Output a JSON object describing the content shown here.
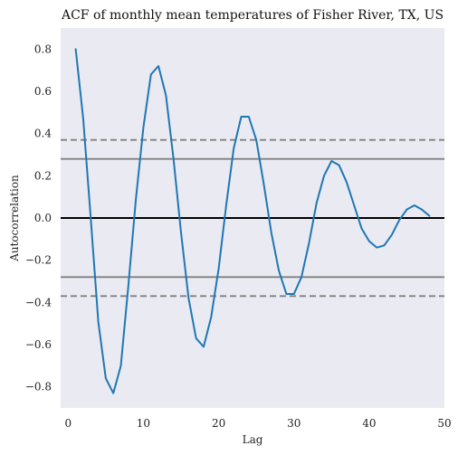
{
  "chart_data": {
    "type": "line",
    "title": "ACF of monthly mean temperatures of Fisher River, TX, US",
    "xlabel": "Lag",
    "ylabel": "Autocorrelation",
    "xlim": [
      -1,
      50
    ],
    "ylim": [
      -0.9,
      0.9
    ],
    "xticks": [
      0,
      10,
      20,
      30,
      40,
      50
    ],
    "xtick_labels": [
      "0",
      "10",
      "20",
      "30",
      "40",
      "50"
    ],
    "yticks": [
      -0.8,
      -0.6,
      -0.4,
      -0.2,
      0.0,
      0.2,
      0.4,
      0.6,
      0.8
    ],
    "ytick_labels": [
      "−0.8",
      "−0.6",
      "−0.4",
      "−0.2",
      "0.0",
      "0.2",
      "0.4",
      "0.6",
      "0.8"
    ],
    "grid": false,
    "background": "#eaeaf2",
    "series": [
      {
        "color": "#1f77b4",
        "x": [
          1,
          2,
          3,
          4,
          5,
          6,
          7,
          8,
          9,
          10,
          11,
          12,
          13,
          14,
          15,
          16,
          17,
          18,
          19,
          20,
          21,
          22,
          23,
          24,
          25,
          26,
          27,
          28,
          29,
          30,
          31,
          32,
          33,
          34,
          35,
          36,
          37,
          38,
          39,
          40,
          41,
          42,
          43,
          44,
          45,
          46,
          47,
          48
        ],
        "y": [
          0.8,
          0.47,
          0.0,
          -0.49,
          -0.76,
          -0.83,
          -0.7,
          -0.32,
          0.09,
          0.43,
          0.68,
          0.72,
          0.58,
          0.28,
          -0.07,
          -0.38,
          -0.57,
          -0.61,
          -0.47,
          -0.24,
          0.06,
          0.33,
          0.48,
          0.48,
          0.37,
          0.16,
          -0.07,
          -0.25,
          -0.36,
          -0.36,
          -0.28,
          -0.12,
          0.07,
          0.2,
          0.27,
          0.25,
          0.17,
          0.06,
          -0.05,
          -0.11,
          -0.14,
          -0.13,
          -0.08,
          -0.01,
          0.04,
          0.06,
          0.04,
          0.01
        ]
      }
    ],
    "reference_lines": [
      {
        "y": 0.0,
        "style": "solid",
        "color": "#000000"
      },
      {
        "y": 0.28,
        "style": "solid",
        "color": "#808080"
      },
      {
        "y": -0.28,
        "style": "solid",
        "color": "#808080"
      },
      {
        "y": 0.37,
        "style": "dashed",
        "color": "#808080"
      },
      {
        "y": -0.37,
        "style": "dashed",
        "color": "#808080"
      }
    ]
  }
}
